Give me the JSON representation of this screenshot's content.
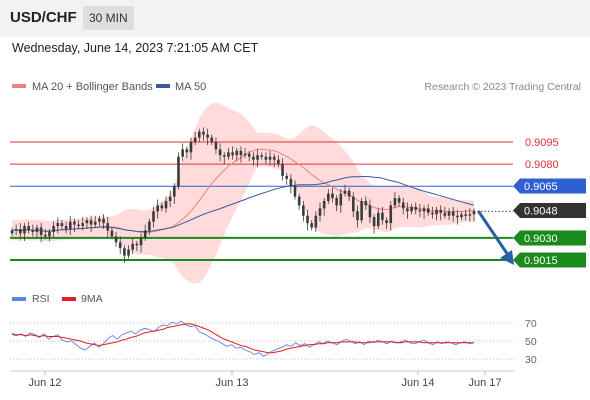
{
  "header": {
    "symbol": "USD/CHF",
    "interval": "30 MIN",
    "datetime": "Wednesday, June 14, 2023 7:21:05 AM CET"
  },
  "legend": {
    "ma20_label": "MA 20 + Bollinger Bands",
    "ma50_label": "MA 50",
    "ma20_color": "#f08080",
    "ma50_color": "#3a5a9a",
    "credit": "Research © 2023 Trading Central"
  },
  "rsi_legend": {
    "rsi_label": "RSI",
    "ma_label": "9MA",
    "rsi_color": "#5b86e5",
    "ma_color": "#e02020"
  },
  "colors": {
    "band_fill": "#ffd5d5",
    "candle": "#3a3a3a",
    "red_level": "#e03030",
    "blue_level": "#3060d0",
    "green_level": "#1a8a1a",
    "arrow": "#2b5fa3"
  },
  "chart_data": [
    {
      "type": "candlestick",
      "title": "",
      "ylim": [
        0.9005,
        0.9115
      ],
      "x_ticks": [
        "Jun 12",
        "Jun 13",
        "Jun 14",
        "Jun 17"
      ],
      "current_price": 0.9048,
      "levels": [
        {
          "value": 0.9095,
          "label": "0.9095",
          "kind": "resistance",
          "style": "thin",
          "color": "#e03030"
        },
        {
          "value": 0.908,
          "label": "0.9080",
          "kind": "resistance",
          "style": "thin",
          "color": "#e03030"
        },
        {
          "value": 0.9065,
          "label": "0.9065",
          "kind": "pivot",
          "style": "thin",
          "color": "#3060d0"
        },
        {
          "value": 0.903,
          "label": "0.9030",
          "kind": "support",
          "style": "thick",
          "color": "#1a8a1a"
        },
        {
          "value": 0.9015,
          "label": "0.9015",
          "kind": "support",
          "style": "thick",
          "color": "#1a8a1a"
        }
      ],
      "close": [
        0.9035,
        0.9036,
        0.9033,
        0.9038,
        0.9035,
        0.9034,
        0.9037,
        0.9032,
        0.9031,
        0.9034,
        0.9038,
        0.904,
        0.9038,
        0.9036,
        0.9041,
        0.9039,
        0.9038,
        0.904,
        0.9042,
        0.9039,
        0.9041,
        0.9043,
        0.904,
        0.9035,
        0.9031,
        0.9027,
        0.9023,
        0.9018,
        0.9022,
        0.9026,
        0.9025,
        0.903,
        0.9035,
        0.9041,
        0.9048,
        0.9052,
        0.905,
        0.9055,
        0.9058,
        0.9065,
        0.9085,
        0.909,
        0.9088,
        0.9095,
        0.9098,
        0.9102,
        0.91,
        0.9098,
        0.9095,
        0.909,
        0.9086,
        0.9085,
        0.9088,
        0.9086,
        0.9089,
        0.9086,
        0.9087,
        0.9085,
        0.9083,
        0.9086,
        0.9085,
        0.9083,
        0.9085,
        0.9083,
        0.908,
        0.9072,
        0.907,
        0.9065,
        0.9058,
        0.9052,
        0.9045,
        0.904,
        0.9037,
        0.9045,
        0.905,
        0.9055,
        0.906,
        0.9057,
        0.9052,
        0.906,
        0.9062,
        0.9058,
        0.9048,
        0.9042,
        0.9055,
        0.9052,
        0.9044,
        0.9038,
        0.9047,
        0.9042,
        0.904,
        0.9052,
        0.9057,
        0.9054,
        0.905,
        0.9048,
        0.9051,
        0.9049,
        0.9048,
        0.905,
        0.9047,
        0.9046,
        0.9049,
        0.9047,
        0.9045,
        0.9048,
        0.9045,
        0.9044,
        0.9046,
        0.9045,
        0.9046,
        0.9048
      ]
    },
    {
      "type": "line",
      "title": "",
      "ylim": [
        20,
        80
      ],
      "y_ticks": [
        70,
        50,
        30
      ],
      "series": [
        {
          "name": "RSI",
          "values": [
            57,
            56,
            58,
            55,
            59,
            57,
            54,
            58,
            52,
            55,
            57,
            51,
            49,
            50,
            46,
            42,
            40,
            44,
            48,
            43,
            47,
            53,
            56,
            52,
            57,
            59,
            61,
            58,
            62,
            64,
            63,
            60,
            65,
            68,
            67,
            71,
            69,
            72,
            68,
            66,
            67,
            60,
            58,
            55,
            52,
            50,
            47,
            44,
            46,
            42,
            43,
            40,
            38,
            35,
            37,
            33,
            36,
            39,
            41,
            43,
            46,
            44,
            48,
            45,
            47,
            43,
            46,
            49,
            47,
            50,
            48,
            46,
            49,
            52,
            50,
            47,
            49,
            46,
            50,
            48,
            51,
            49,
            47,
            50,
            48,
            49,
            51,
            48,
            47,
            49,
            51,
            48,
            46,
            49,
            47,
            49,
            48,
            46,
            48,
            49,
            47,
            48
          ]
        },
        {
          "name": "9MA",
          "values": [
            58,
            57,
            57,
            56,
            57,
            56,
            55,
            56,
            55,
            55,
            55,
            54,
            53,
            52,
            51,
            50,
            48,
            47,
            46,
            45,
            46,
            47,
            48,
            49,
            51,
            52,
            54,
            55,
            57,
            59,
            60,
            61,
            62,
            63,
            65,
            66,
            67,
            68,
            69,
            69,
            68,
            66,
            64,
            62,
            59,
            56,
            53,
            51,
            49,
            47,
            45,
            44,
            42,
            40,
            39,
            38,
            37,
            37,
            38,
            39,
            41,
            42,
            43,
            44,
            45,
            46,
            46,
            47,
            47,
            48,
            48,
            48,
            49,
            49,
            49,
            49,
            48,
            48,
            48,
            49,
            49,
            49,
            49,
            49,
            48,
            48,
            49,
            49,
            49,
            49,
            48,
            48,
            48,
            48,
            48,
            48,
            48,
            48,
            48,
            48,
            48,
            48
          ]
        }
      ]
    }
  ],
  "price_tags": {
    "p9095": "0.9095",
    "p9080": "0.9080",
    "p9065": "0.9065",
    "p9048": "0.9048",
    "p9030": "0.9030",
    "p9015": "0.9015"
  },
  "rsi_ticks": {
    "t70": "70",
    "t50": "50",
    "t30": "30"
  },
  "x_labels": {
    "jun12": "Jun 12",
    "jun13": "Jun 13",
    "jun14": "Jun 14",
    "jun17": "Jun 17"
  }
}
